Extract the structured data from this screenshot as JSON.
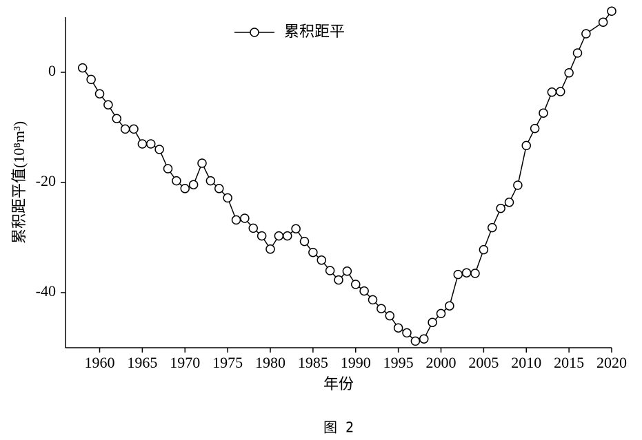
{
  "chart_data": {
    "type": "line",
    "caption": "图 2",
    "xlabel": "年份",
    "ylabel": "累积距平值(10⁸m³)",
    "x": [
      1958,
      1959,
      1960,
      1961,
      1962,
      1963,
      1964,
      1965,
      1966,
      1967,
      1968,
      1969,
      1970,
      1971,
      1972,
      1973,
      1974,
      1975,
      1976,
      1977,
      1978,
      1979,
      1980,
      1981,
      1982,
      1983,
      1984,
      1985,
      1986,
      1987,
      1988,
      1989,
      1990,
      1991,
      1992,
      1993,
      1994,
      1995,
      1996,
      1997,
      1998,
      1999,
      2000,
      2001,
      2002,
      2003,
      2004,
      2005,
      2006,
      2007,
      2008,
      2009,
      2010,
      2011,
      2012,
      2013,
      2014,
      2015,
      2016,
      2017,
      2019,
      2020
    ],
    "series": [
      {
        "name": "累积距平",
        "color": "#000000",
        "values": [
          0.8,
          -1.3,
          -3.9,
          -5.9,
          -8.4,
          -10.3,
          -10.3,
          -13.0,
          -13.0,
          -14.0,
          -17.5,
          -19.7,
          -21.1,
          -20.4,
          -16.5,
          -19.7,
          -21.1,
          -22.8,
          -26.8,
          -26.5,
          -28.3,
          -29.7,
          -32.1,
          -29.7,
          -29.7,
          -28.4,
          -30.7,
          -32.7,
          -34.1,
          -36.0,
          -37.7,
          -36.1,
          -38.5,
          -39.7,
          -41.3,
          -42.9,
          -44.2,
          -46.4,
          -47.3,
          -48.8,
          -48.4,
          -45.4,
          -43.8,
          -42.4,
          -36.7,
          -36.4,
          -36.5,
          -32.2,
          -28.2,
          -24.7,
          -23.6,
          -20.5,
          -13.3,
          -10.2,
          -7.4,
          -3.6,
          -3.5,
          -0.1,
          3.5,
          7.0,
          9.1,
          11.1
        ]
      }
    ],
    "xlim": [
      1956,
      2020
    ],
    "xticks": [
      1960,
      1965,
      1970,
      1975,
      1980,
      1985,
      1990,
      1995,
      2000,
      2005,
      2010,
      2015,
      2020
    ],
    "ylim": [
      -50,
      10
    ],
    "yticks": [
      0,
      -20,
      -40
    ]
  }
}
